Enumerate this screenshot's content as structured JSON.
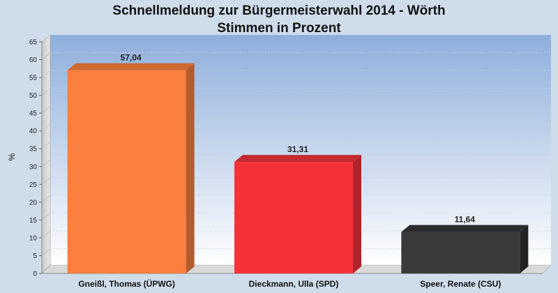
{
  "chart_data": {
    "type": "bar",
    "title": "Schnellmeldung zur Bürgermeisterwahl 2014 - Wörth",
    "subtitle": "Stimmen in Prozent",
    "ylabel": "%",
    "xlabel": "",
    "ylim": [
      0,
      65
    ],
    "ytick_step": 5,
    "grid": true,
    "categories": [
      "Gneißl, Thomas (ÜPWG)",
      "Dieckmann, Ulla (SPD)",
      "Speer, Renate (CSU)"
    ],
    "values": [
      57.04,
      31.31,
      11.64
    ],
    "value_labels": [
      "57,04",
      "31,31",
      "11,64"
    ],
    "colors": [
      "#fb7f3f",
      "#f5323a",
      "#3a3a3a"
    ],
    "side_colors": [
      "#b55c2f",
      "#b0252c",
      "#232323"
    ],
    "top_colors": [
      "#d06a35",
      "#c52a31",
      "#2c2c2c"
    ]
  }
}
